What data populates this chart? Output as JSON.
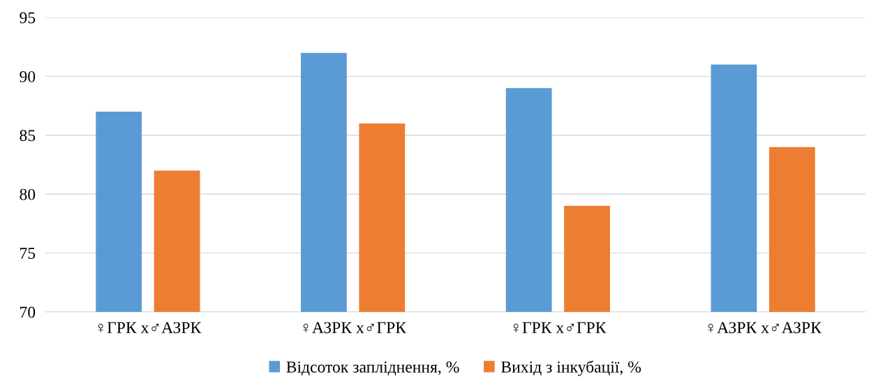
{
  "chart_data": {
    "type": "bar",
    "categories": [
      "♀ГРК х♂АЗРК",
      "♀АЗРК х♂ГРК",
      "♀ГРК х♂ГРК",
      "♀АЗРК х♂АЗРК"
    ],
    "series": [
      {
        "name": "Відсоток запліднення, %",
        "color": "#5b9bd5",
        "values": [
          87,
          92,
          89,
          91
        ]
      },
      {
        "name": "Вихід з інкубації, %",
        "color": "#ed7d31",
        "values": [
          82,
          86,
          79,
          84
        ]
      }
    ],
    "ylim": [
      70,
      95
    ],
    "yticks": [
      70,
      75,
      80,
      85,
      90,
      95
    ],
    "grid": "y",
    "legend": "bottom"
  }
}
